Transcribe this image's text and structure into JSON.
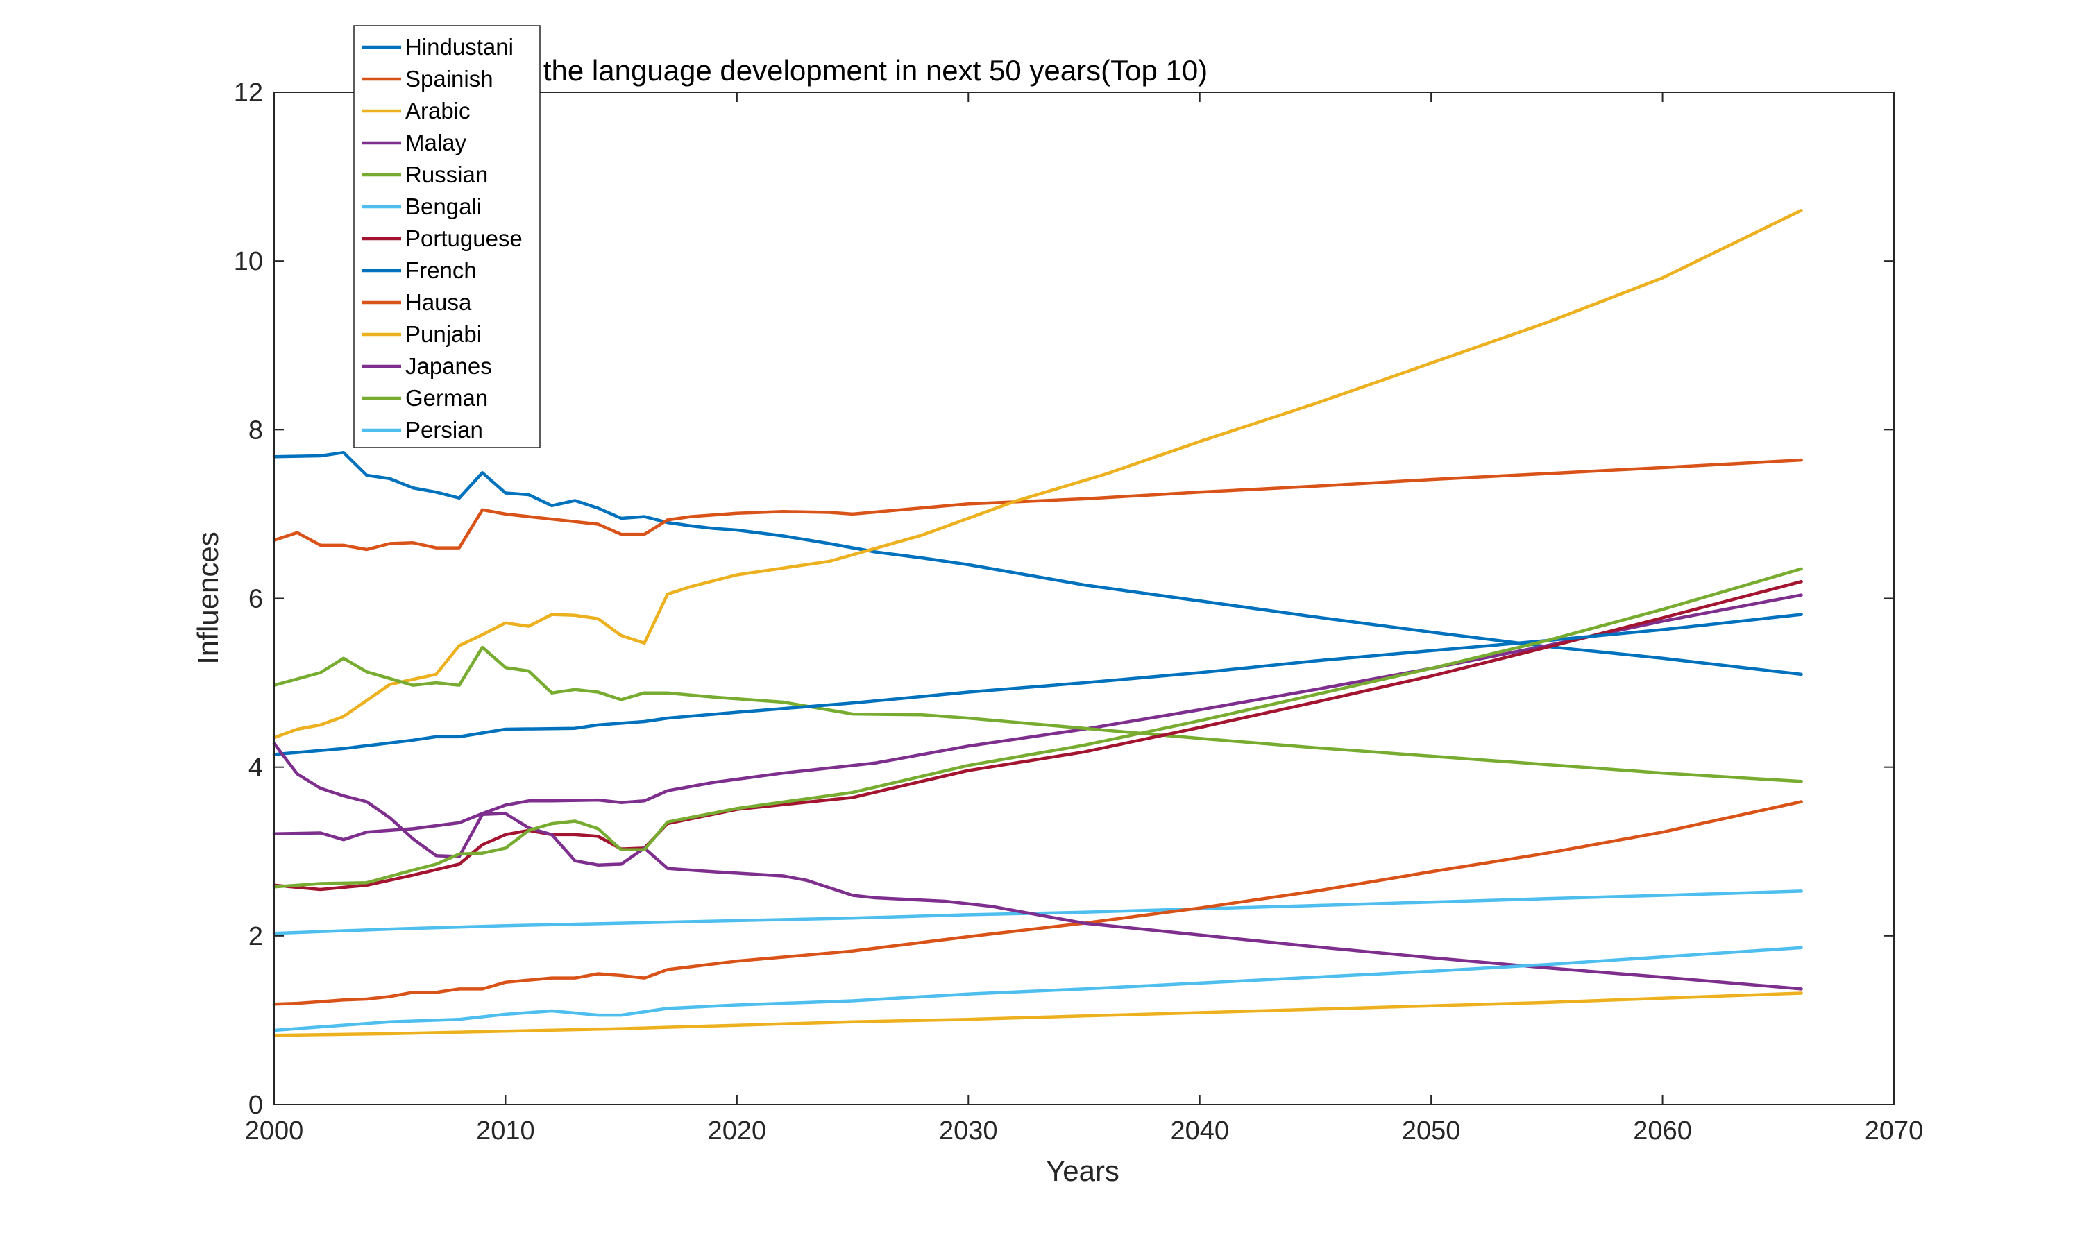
{
  "chart_data": {
    "type": "line",
    "title": "Forecast the language development in next 50 years(Top 10)",
    "xlabel": "Years",
    "ylabel": "Influences",
    "xlim": [
      2000,
      2070
    ],
    "ylim": [
      0,
      12
    ],
    "xticks": [
      2000,
      2010,
      2020,
      2030,
      2040,
      2050,
      2060,
      2070
    ],
    "yticks": [
      0,
      2,
      4,
      6,
      8,
      10,
      12
    ],
    "grid": false,
    "legend_position": "top-left outside",
    "series": [
      {
        "name": "Hindustani",
        "color": "#0072BD",
        "x": [
          2000,
          2002,
          2003,
          2004,
          2005,
          2006,
          2007,
          2008,
          2009,
          2010,
          2011,
          2012,
          2013,
          2014,
          2015,
          2016,
          2017,
          2018,
          2019,
          2020,
          2022,
          2024,
          2026,
          2028,
          2030,
          2035,
          2040,
          2045,
          2050,
          2055,
          2060,
          2066
        ],
        "y": [
          7.68,
          7.69,
          7.73,
          7.46,
          7.42,
          7.31,
          7.26,
          7.19,
          7.49,
          7.25,
          7.23,
          7.1,
          7.16,
          7.07,
          6.95,
          6.97,
          6.9,
          6.86,
          6.83,
          6.81,
          6.74,
          6.65,
          6.55,
          6.48,
          6.4,
          6.16,
          5.97,
          5.78,
          5.6,
          5.43,
          5.29,
          5.1
        ]
      },
      {
        "name": "Spainish",
        "color": "#D95319",
        "x": [
          2000,
          2001,
          2002,
          2003,
          2004,
          2005,
          2006,
          2007,
          2008,
          2009,
          2010,
          2012,
          2014,
          2015,
          2016,
          2017,
          2018,
          2020,
          2022,
          2024,
          2025,
          2030,
          2035,
          2040,
          2045,
          2050,
          2055,
          2060,
          2066
        ],
        "y": [
          6.69,
          6.78,
          6.63,
          6.63,
          6.58,
          6.65,
          6.66,
          6.6,
          6.6,
          7.05,
          7.0,
          6.94,
          6.88,
          6.76,
          6.76,
          6.93,
          6.97,
          7.01,
          7.03,
          7.02,
          7.0,
          7.12,
          7.18,
          7.26,
          7.33,
          7.41,
          7.48,
          7.55,
          7.64
        ]
      },
      {
        "name": "Arabic",
        "color": "#EDB120",
        "x": [
          2000,
          2001,
          2002,
          2003,
          2005,
          2007,
          2008,
          2009,
          2010,
          2011,
          2012,
          2013,
          2014,
          2015,
          2016,
          2017,
          2018,
          2020,
          2024,
          2028,
          2032,
          2036,
          2040,
          2045,
          2050,
          2055,
          2060,
          2066
        ],
        "y": [
          4.35,
          4.45,
          4.5,
          4.6,
          4.98,
          5.1,
          5.44,
          5.57,
          5.71,
          5.67,
          5.81,
          5.8,
          5.76,
          5.56,
          5.47,
          6.05,
          6.14,
          6.28,
          6.44,
          6.75,
          7.15,
          7.48,
          7.86,
          8.31,
          8.79,
          9.27,
          9.8,
          10.6
        ]
      },
      {
        "name": "Malay",
        "color": "#7E2F8E",
        "x": [
          2000,
          2002,
          2003,
          2004,
          2006,
          2008,
          2009,
          2010,
          2011,
          2012,
          2014,
          2015,
          2016,
          2017,
          2019,
          2022,
          2026,
          2030,
          2035,
          2040,
          2045,
          2050,
          2055,
          2060,
          2066
        ],
        "y": [
          3.21,
          3.22,
          3.14,
          3.23,
          3.27,
          3.34,
          3.45,
          3.55,
          3.6,
          3.6,
          3.61,
          3.58,
          3.6,
          3.72,
          3.82,
          3.93,
          4.05,
          4.25,
          4.45,
          4.68,
          4.92,
          5.17,
          5.44,
          5.73,
          6.04
        ]
      },
      {
        "name": "Russian",
        "color": "#77AC30",
        "x": [
          2000,
          2002,
          2003,
          2004,
          2006,
          2007,
          2008,
          2009,
          2010,
          2011,
          2012,
          2013,
          2014,
          2015,
          2016,
          2017,
          2019,
          2022,
          2025,
          2028,
          2030,
          2035,
          2040,
          2045,
          2050,
          2055,
          2060,
          2066
        ],
        "y": [
          4.97,
          5.12,
          5.29,
          5.13,
          4.97,
          5.0,
          4.97,
          5.42,
          5.18,
          5.14,
          4.88,
          4.92,
          4.89,
          4.8,
          4.88,
          4.88,
          4.83,
          4.77,
          4.63,
          4.62,
          4.58,
          4.46,
          4.34,
          4.23,
          4.13,
          4.03,
          3.93,
          3.83
        ]
      },
      {
        "name": "Bengali",
        "color": "#4DBEEE",
        "x": [
          2000,
          2005,
          2010,
          2015,
          2020,
          2025,
          2030,
          2035,
          2040,
          2045,
          2050,
          2055,
          2060,
          2066
        ],
        "y": [
          2.03,
          2.08,
          2.12,
          2.15,
          2.18,
          2.21,
          2.25,
          2.28,
          2.32,
          2.36,
          2.4,
          2.44,
          2.48,
          2.53
        ]
      },
      {
        "name": "Portuguese",
        "color": "#A2142F",
        "x": [
          2000,
          2002,
          2004,
          2006,
          2008,
          2009,
          2010,
          2011,
          2012,
          2013,
          2014,
          2015,
          2016,
          2017,
          2020,
          2025,
          2030,
          2035,
          2040,
          2045,
          2050,
          2055,
          2060,
          2066
        ],
        "y": [
          2.6,
          2.55,
          2.6,
          2.72,
          2.85,
          3.08,
          3.2,
          3.25,
          3.2,
          3.2,
          3.18,
          3.03,
          3.04,
          3.33,
          3.5,
          3.64,
          3.96,
          4.18,
          4.47,
          4.77,
          5.08,
          5.42,
          5.77,
          6.2
        ]
      },
      {
        "name": "French",
        "color": "#0072BD",
        "x": [
          2000,
          2003,
          2006,
          2007,
          2008,
          2010,
          2013,
          2014,
          2015,
          2016,
          2017,
          2020,
          2025,
          2030,
          2035,
          2040,
          2045,
          2050,
          2055,
          2060,
          2066
        ],
        "y": [
          4.15,
          4.22,
          4.32,
          4.36,
          4.36,
          4.45,
          4.46,
          4.5,
          4.52,
          4.54,
          4.58,
          4.65,
          4.76,
          4.89,
          5.0,
          5.12,
          5.26,
          5.38,
          5.5,
          5.63,
          5.81
        ]
      },
      {
        "name": "Hausa",
        "color": "#D95319",
        "x": [
          2000,
          2001,
          2002,
          2003,
          2004,
          2005,
          2006,
          2007,
          2008,
          2009,
          2010,
          2012,
          2013,
          2014,
          2015,
          2016,
          2017,
          2020,
          2025,
          2030,
          2035,
          2040,
          2045,
          2050,
          2055,
          2060,
          2066
        ],
        "y": [
          1.19,
          1.2,
          1.22,
          1.24,
          1.25,
          1.28,
          1.33,
          1.33,
          1.37,
          1.37,
          1.45,
          1.5,
          1.5,
          1.55,
          1.53,
          1.5,
          1.6,
          1.7,
          1.82,
          1.99,
          2.15,
          2.33,
          2.53,
          2.76,
          2.98,
          3.23,
          3.59
        ]
      },
      {
        "name": "Punjabi",
        "color": "#EDB120",
        "x": [
          2000,
          2005,
          2010,
          2015,
          2020,
          2025,
          2030,
          2035,
          2040,
          2045,
          2050,
          2055,
          2060,
          2066
        ],
        "y": [
          0.82,
          0.84,
          0.87,
          0.9,
          0.94,
          0.98,
          1.01,
          1.05,
          1.09,
          1.13,
          1.17,
          1.21,
          1.26,
          1.32
        ]
      },
      {
        "name": "Japanes",
        "color": "#7E2F8E",
        "x": [
          2000,
          2001,
          2002,
          2003,
          2004,
          2005,
          2006,
          2007,
          2008,
          2009,
          2010,
          2011,
          2012,
          2013,
          2014,
          2015,
          2016,
          2017,
          2019,
          2022,
          2023,
          2024,
          2025,
          2026,
          2029,
          2031,
          2035,
          2040,
          2045,
          2050,
          2055,
          2060,
          2066
        ],
        "y": [
          4.28,
          3.92,
          3.75,
          3.66,
          3.59,
          3.4,
          3.15,
          2.95,
          2.94,
          3.44,
          3.45,
          3.28,
          3.2,
          2.89,
          2.84,
          2.85,
          3.04,
          2.8,
          2.76,
          2.71,
          2.66,
          2.57,
          2.48,
          2.45,
          2.41,
          2.35,
          2.15,
          2.01,
          1.87,
          1.74,
          1.62,
          1.51,
          1.37
        ]
      },
      {
        "name": "German",
        "color": "#77AC30",
        "x": [
          2000,
          2002,
          2004,
          2006,
          2007,
          2008,
          2009,
          2010,
          2011,
          2012,
          2013,
          2014,
          2015,
          2016,
          2017,
          2020,
          2025,
          2030,
          2035,
          2040,
          2045,
          2050,
          2055,
          2060,
          2066
        ],
        "y": [
          2.58,
          2.62,
          2.63,
          2.78,
          2.85,
          2.97,
          2.98,
          3.04,
          3.25,
          3.33,
          3.36,
          3.27,
          3.02,
          3.02,
          3.35,
          3.51,
          3.7,
          4.02,
          4.26,
          4.55,
          4.86,
          5.17,
          5.5,
          5.87,
          6.35
        ]
      },
      {
        "name": "Persian",
        "color": "#4DBEEE",
        "x": [
          2000,
          2005,
          2008,
          2010,
          2012,
          2014,
          2015,
          2017,
          2020,
          2025,
          2030,
          2035,
          2040,
          2045,
          2050,
          2055,
          2060,
          2066
        ],
        "y": [
          0.88,
          0.98,
          1.01,
          1.07,
          1.11,
          1.06,
          1.06,
          1.14,
          1.18,
          1.23,
          1.31,
          1.37,
          1.44,
          1.51,
          1.58,
          1.66,
          1.75,
          1.86
        ]
      }
    ]
  }
}
